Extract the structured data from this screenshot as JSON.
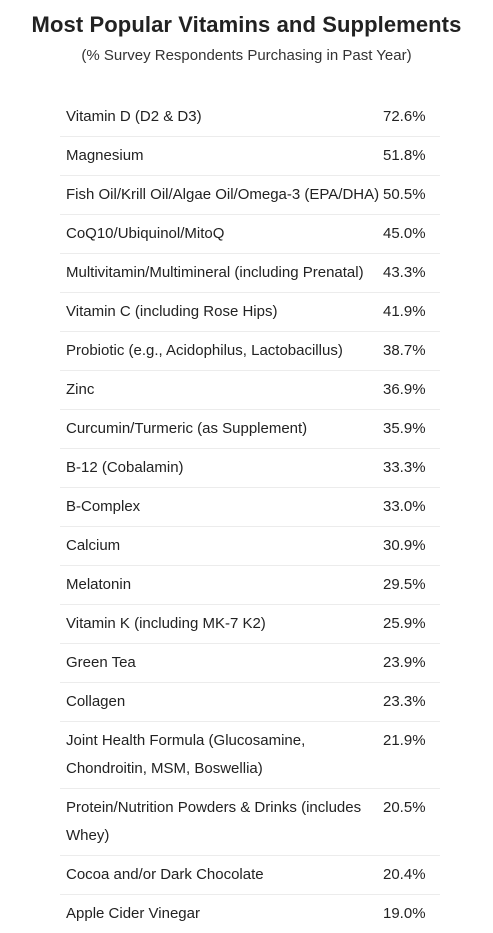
{
  "header": {
    "title": "Most Popular Vitamins and Supplements",
    "subtitle": "(% Survey Respondents Purchasing in Past Year)"
  },
  "rows": [
    {
      "name": "Vitamin D (D2 & D3)",
      "value": "72.6%"
    },
    {
      "name": "Magnesium",
      "value": "51.8%"
    },
    {
      "name": "Fish Oil/Krill Oil/Algae Oil/Omega-3 (EPA/DHA)",
      "value": "50.5%"
    },
    {
      "name": "CoQ10/Ubiquinol/MitoQ",
      "value": "45.0%"
    },
    {
      "name": "Multivitamin/Multimineral (including Prenatal)",
      "value": "43.3%"
    },
    {
      "name": "Vitamin C (including Rose Hips)",
      "value": "41.9%"
    },
    {
      "name": "Probiotic (e.g., Acidophilus, Lactobacillus)",
      "value": "38.7%"
    },
    {
      "name": "Zinc",
      "value": "36.9%"
    },
    {
      "name": "Curcumin/Turmeric (as Supplement)",
      "value": "35.9%"
    },
    {
      "name": "B-12 (Cobalamin)",
      "value": "33.3%"
    },
    {
      "name": "B-Complex",
      "value": "33.0%"
    },
    {
      "name": "Calcium",
      "value": "30.9%"
    },
    {
      "name": "Melatonin",
      "value": "29.5%"
    },
    {
      "name": "Vitamin K (including MK-7 K2)",
      "value": "25.9%"
    },
    {
      "name": "Green Tea",
      "value": "23.9%"
    },
    {
      "name": "Collagen",
      "value": "23.3%"
    },
    {
      "name": "Joint Health Formula (Glucosamine, Chondroitin, MSM, Boswellia)",
      "value": "21.9%"
    },
    {
      "name": "Protein/Nutrition Powders & Drinks (includes Whey)",
      "value": "20.5%"
    },
    {
      "name": "Cocoa and/or Dark Chocolate",
      "value": "20.4%"
    },
    {
      "name": "Apple Cider Vinegar",
      "value": "19.0%"
    }
  ]
}
